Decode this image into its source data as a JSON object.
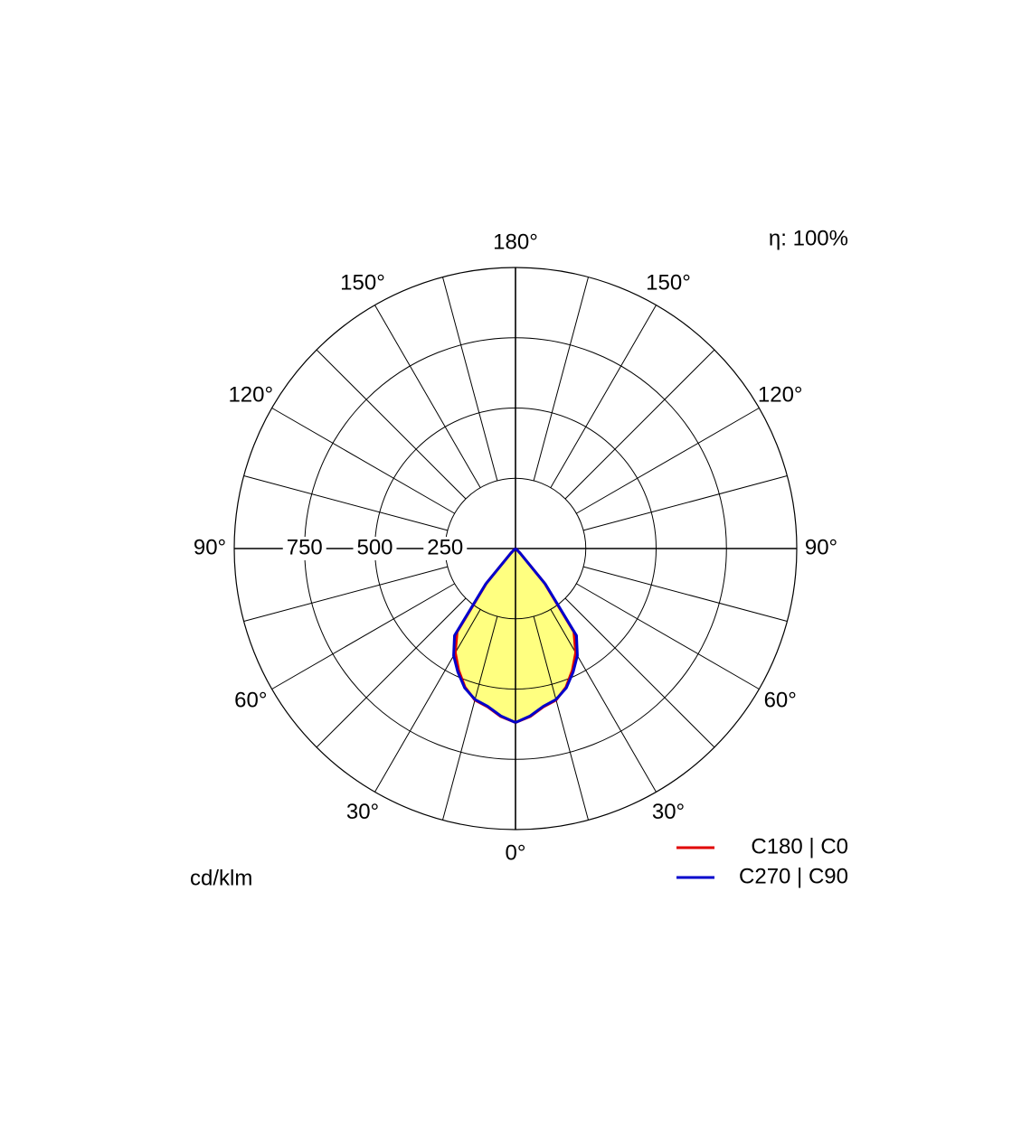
{
  "chart_data": {
    "type": "polar",
    "annotation": "η: 100%",
    "unit_label": "cd/klm",
    "rlim": [
      0,
      1000
    ],
    "rticks": [
      250,
      500,
      750
    ],
    "angle_grid": 15,
    "angle_ticks": [
      {
        "value": 0,
        "label": "0°"
      },
      {
        "value": 30,
        "label": "30°"
      },
      {
        "value": 60,
        "label": "60°"
      },
      {
        "value": 90,
        "label": "90°"
      },
      {
        "value": 120,
        "label": "120°"
      },
      {
        "value": 150,
        "label": "150°"
      },
      {
        "value": 180,
        "label": "180°"
      }
    ],
    "x": [
      0,
      5,
      10,
      15,
      20,
      25,
      30,
      35,
      40,
      45,
      50,
      55,
      60,
      65,
      70,
      75,
      80,
      85,
      90
    ],
    "fill_color": "#ffff80",
    "series": [
      {
        "name": "C180 | C0",
        "color": "#e00000",
        "values": [
          619,
          600,
          572,
          558,
          525,
          478,
          428,
          362,
          160,
          22,
          5,
          2,
          0,
          0,
          0,
          0,
          0,
          0,
          0
        ]
      },
      {
        "name": "C270 | C90",
        "color": "#0000cc",
        "values": [
          619,
          598,
          570,
          556,
          528,
          485,
          440,
          378,
          165,
          24,
          5,
          2,
          0,
          0,
          0,
          0,
          0,
          0,
          0
        ]
      }
    ]
  }
}
